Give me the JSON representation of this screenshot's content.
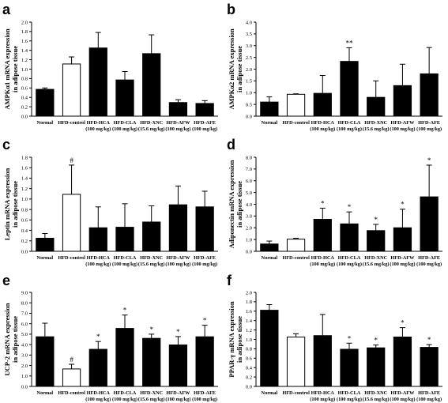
{
  "figure": {
    "panels": [
      "a",
      "b",
      "c",
      "d",
      "e",
      "f"
    ]
  },
  "chart_data": [
    {
      "panel": "a",
      "type": "bar",
      "ylabel": [
        "AMPKα1 mRNA expression",
        "in adipose tissue"
      ],
      "ylim": [
        0,
        2.0
      ],
      "yticks": [
        "0.0",
        "0.2",
        "0.4",
        "0.6",
        "0.8",
        "1.0",
        "1.2",
        "1.4",
        "1.6",
        "1.8",
        "2.0"
      ],
      "categories": [
        [
          "Normal"
        ],
        [
          "HFD-control"
        ],
        [
          "HFD-HCA",
          "(100 mg/kg)"
        ],
        [
          "HFD-CLA",
          "(100 mg/kg)"
        ],
        [
          "HFD-XNC",
          "(15.6 mg/kg)"
        ],
        [
          "HFD-AFW",
          "(100 mg/kg)"
        ],
        [
          "HFD-AFE",
          "(100 mg/kg)"
        ]
      ],
      "values": [
        0.57,
        1.11,
        1.45,
        0.77,
        1.33,
        0.29,
        0.27
      ],
      "errors": [
        0.03,
        0.15,
        0.33,
        0.18,
        0.4,
        0.06,
        0.06
      ],
      "annotations": [
        "",
        "",
        "",
        "",
        "",
        "",
        ""
      ]
    },
    {
      "panel": "b",
      "type": "bar",
      "ylabel": [
        "AMPKα2 mRNA expression",
        "in adipose tissue"
      ],
      "ylim": [
        0,
        4.0
      ],
      "yticks": [
        "0.0",
        "0.5",
        "1.0",
        "1.5",
        "2.0",
        "2.5",
        "3.0",
        "3.5",
        "4.0"
      ],
      "categories": [
        [
          "Normal"
        ],
        [
          "HFD-control"
        ],
        [
          "HFD-HCA",
          "(100 mg/kg)"
        ],
        [
          "HFD-CLA",
          "(100 mg/kg)"
        ],
        [
          "HFD-XNC",
          "(15.6 mg/kg)"
        ],
        [
          "HFD-AFW",
          "(100 mg/kg)"
        ],
        [
          "HFD-AFE",
          "(100 mg/kg)"
        ]
      ],
      "values": [
        0.6,
        0.93,
        0.97,
        2.33,
        0.8,
        1.3,
        1.8
      ],
      "errors": [
        0.22,
        0.02,
        0.76,
        0.58,
        0.7,
        0.91,
        1.12
      ],
      "annotations": [
        "",
        "",
        "",
        "**",
        "",
        "",
        ""
      ]
    },
    {
      "panel": "c",
      "type": "bar",
      "ylabel": [
        "Leptin mRNA expression",
        "in adipose tissue"
      ],
      "ylim": [
        0,
        1.8
      ],
      "yticks": [
        "0.0",
        "0.2",
        "0.4",
        "0.6",
        "0.8",
        "1.0",
        "1.2",
        "1.4",
        "1.6",
        "1.8"
      ],
      "categories": [
        [
          "Normal"
        ],
        [
          "HFD-control"
        ],
        [
          "HFD-HCA",
          "(100 mg/kg)"
        ],
        [
          "HFD-CLA",
          "(100 mg/kg)"
        ],
        [
          "HFD-XNC",
          "(15.6 mg/kg)"
        ],
        [
          "HFD-AFW",
          "(100 mg/kg)"
        ],
        [
          "HFD-AFE",
          "(100 mg/kg)"
        ]
      ],
      "values": [
        0.25,
        1.09,
        0.45,
        0.46,
        0.56,
        0.89,
        0.85
      ],
      "errors": [
        0.09,
        0.56,
        0.4,
        0.45,
        0.31,
        0.36,
        0.3
      ],
      "annotations": [
        "",
        "#",
        "",
        "",
        "",
        "",
        ""
      ]
    },
    {
      "panel": "d",
      "type": "bar",
      "ylabel": [
        "Adiponectin mRNA expression",
        "in adipose tissue"
      ],
      "ylim": [
        0,
        8.0
      ],
      "yticks": [
        "0.0",
        "1.0",
        "2.0",
        "3.0",
        "4.0",
        "5.0",
        "6.0",
        "7.0",
        "8.0"
      ],
      "categories": [
        [
          "Normal"
        ],
        [
          "HFD-control"
        ],
        [
          "HFD-HCA",
          "(100 mg/kg)"
        ],
        [
          "HFD-CLA",
          "(100 mg/kg)"
        ],
        [
          "HFD-XNC",
          "(15.6 mg/kg)"
        ],
        [
          "HFD-AFW",
          "(100 mg/kg)"
        ],
        [
          "HFD-AFE",
          "(100 mg/kg)"
        ]
      ],
      "values": [
        0.62,
        1.03,
        2.72,
        2.33,
        1.76,
        2.0,
        4.63
      ],
      "errors": [
        0.25,
        0.07,
        0.95,
        1.02,
        0.53,
        1.58,
        2.7
      ],
      "annotations": [
        "",
        "",
        "*",
        "*",
        "*",
        "*",
        "*"
      ]
    },
    {
      "panel": "e",
      "type": "bar",
      "ylabel": [
        "UCP-2 mRNA expression",
        "in adipose tissue"
      ],
      "ylim": [
        0,
        9.0
      ],
      "yticks": [
        "0.0",
        "1.0",
        "2.0",
        "3.0",
        "4.0",
        "5.0",
        "6.0",
        "7.0",
        "8.0",
        "9.0"
      ],
      "categories": [
        [
          "Normal"
        ],
        [
          "HFD-control"
        ],
        [
          "HFD-HCA",
          "(100 mg/kg)"
        ],
        [
          "HFD-CLA",
          "(100 mg/kg)"
        ],
        [
          "HFD-XNC",
          "(15.6 mg/kg)"
        ],
        [
          "HFD-AFW",
          "(100 mg/kg)"
        ],
        [
          "HFD-AFE",
          "(100 mg/kg)"
        ]
      ],
      "values": [
        4.75,
        1.67,
        3.55,
        5.55,
        4.6,
        3.97,
        4.75
      ],
      "errors": [
        1.3,
        0.45,
        0.75,
        1.28,
        0.4,
        0.8,
        1.1
      ],
      "annotations": [
        "",
        "#",
        "*",
        "*",
        "*",
        "*",
        "*"
      ]
    },
    {
      "panel": "f",
      "type": "bar",
      "ylabel": [
        "PPAR-γ mRNA expression",
        "in adipose tissue"
      ],
      "ylim": [
        0,
        2.0
      ],
      "yticks": [
        "0.0",
        "0.2",
        "0.4",
        "0.6",
        "0.8",
        "1.0",
        "1.2",
        "1.4",
        "1.6",
        "1.8",
        "2.0"
      ],
      "categories": [
        [
          "Normal"
        ],
        [
          "HFD-control"
        ],
        [
          "HFD-HCA",
          "(100 mg/kg)"
        ],
        [
          "HFD-CLA",
          "(100 mg/kg)"
        ],
        [
          "HFD-XNC",
          "(15.6 mg/kg)"
        ],
        [
          "HFD-AFW",
          "(100 mg/kg)"
        ],
        [
          "HFD-AFE",
          "(100 mg/kg)"
        ]
      ],
      "values": [
        1.62,
        1.05,
        1.08,
        0.79,
        0.82,
        1.05,
        0.83
      ],
      "errors": [
        0.12,
        0.07,
        0.45,
        0.13,
        0.06,
        0.2,
        0.06
      ],
      "annotations": [
        "",
        "",
        "",
        "*",
        "*",
        "*",
        "*"
      ]
    }
  ],
  "style": {
    "bar_fill": "#000000",
    "control_fill": "#ffffff",
    "axis_color": "#000000",
    "text_color": "#000000"
  }
}
